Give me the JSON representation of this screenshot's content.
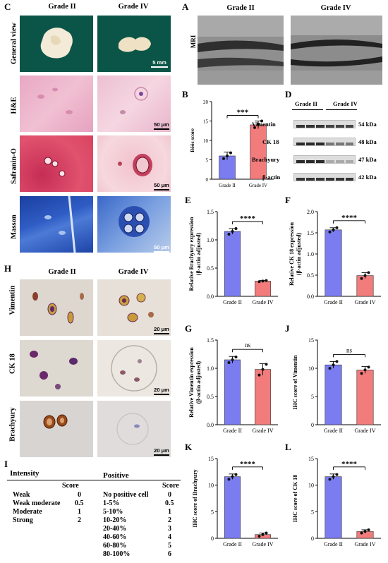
{
  "panel_C": {
    "label": "C",
    "columns": [
      "Grade II",
      "Grade IV"
    ],
    "rows": [
      "General view",
      "H&E",
      "Safranin-O",
      "Masson"
    ],
    "scalebars": [
      "5 mm",
      "50 μm",
      "50 μm",
      "50 μm"
    ]
  },
  "panel_A": {
    "label": "A",
    "columns": [
      "Grade II",
      "Grade IV"
    ],
    "row": "MRI"
  },
  "panel_D": {
    "label": "D",
    "columns": [
      "Grade II",
      "Grade IV"
    ],
    "proteins": [
      "Vimentin",
      "CK 18",
      "Brachyury",
      "β-actin"
    ],
    "sizes": [
      "54 kDa",
      "48 kDa",
      "47 kDa",
      "42 kDa"
    ]
  },
  "panel_H": {
    "label": "H",
    "columns": [
      "Grade II",
      "Grade IV"
    ],
    "rows": [
      "Vimentin",
      "CK 18",
      "Brachyury"
    ],
    "scalebars": [
      "20 μm",
      "20 μm",
      "20 μm"
    ]
  },
  "panel_I": {
    "label": "I",
    "intensity_header": "Intensity",
    "score_header": "Score",
    "positive_header": "Positive",
    "intensity_rows": [
      {
        "name": "Weak",
        "score": "0"
      },
      {
        "name": "Weak moderate",
        "score": "0.5"
      },
      {
        "name": "Moderate",
        "score": "1"
      },
      {
        "name": "Strong",
        "score": "2"
      }
    ],
    "positive_rows": [
      {
        "name": "No positive cell",
        "score": "0"
      },
      {
        "name": "1-5%",
        "score": "0.5"
      },
      {
        "name": "5-10%",
        "score": "1"
      },
      {
        "name": "10-20%",
        "score": "2"
      },
      {
        "name": "20-40%",
        "score": "3"
      },
      {
        "name": "40-60%",
        "score": "4"
      },
      {
        "name": "60-80%",
        "score": "5"
      },
      {
        "name": "80-100%",
        "score": "6"
      }
    ]
  },
  "colors": {
    "grade2": "#7b7cf0",
    "grade4": "#f27c7c",
    "dot": "#111111"
  },
  "chart_data": [
    {
      "panel": "B",
      "type": "bar",
      "categories": [
        "Grade II",
        "Grade IV"
      ],
      "values": [
        6,
        14
      ],
      "errors": [
        1.0,
        1.0
      ],
      "points": [
        [
          5.3,
          6.0,
          6.8
        ],
        [
          13.3,
          14.2,
          15.0
        ]
      ],
      "ylabel": "Bôös score",
      "ylim": [
        0,
        20
      ],
      "yticks": [
        0,
        5,
        10,
        15,
        20
      ],
      "sig": "***"
    },
    {
      "panel": "E",
      "type": "bar",
      "categories": [
        "Grade II",
        "Grade IV"
      ],
      "values": [
        1.15,
        0.27
      ],
      "errors": [
        0.05,
        0.01
      ],
      "points": [
        [
          1.1,
          1.15,
          1.2
        ],
        [
          0.26,
          0.27,
          0.28
        ]
      ],
      "ylabel": "Relative Brachyury expression (β-actin adjusted)",
      "ylim": [
        0,
        1.5
      ],
      "yticks": [
        0.0,
        0.5,
        1.0,
        1.5
      ],
      "sig": "****"
    },
    {
      "panel": "F",
      "type": "bar",
      "categories": [
        "Grade II",
        "Grade IV"
      ],
      "values": [
        1.57,
        0.49
      ],
      "errors": [
        0.05,
        0.07
      ],
      "points": [
        [
          1.52,
          1.57,
          1.62
        ],
        [
          0.42,
          0.49,
          0.56
        ]
      ],
      "ylabel": "Relative CK 18 expression (β-actin adjusted)",
      "ylim": [
        0,
        2.0
      ],
      "yticks": [
        0.0,
        0.5,
        1.0,
        1.5,
        2.0
      ],
      "sig": "****"
    },
    {
      "panel": "G",
      "type": "bar",
      "categories": [
        "Grade II",
        "Grade IV"
      ],
      "values": [
        1.15,
        0.98
      ],
      "errors": [
        0.06,
        0.1
      ],
      "points": [
        [
          1.1,
          1.15,
          1.2
        ],
        [
          0.88,
          0.98,
          1.07
        ]
      ],
      "ylabel": "Relative Vimentin expression (β-actin adjusted)",
      "ylim": [
        0,
        1.5
      ],
      "yticks": [
        0.0,
        0.5,
        1.0,
        1.5
      ],
      "sig": "ns"
    },
    {
      "panel": "J",
      "type": "bar",
      "categories": [
        "Grade II",
        "Grade IV"
      ],
      "values": [
        10.6,
        9.7
      ],
      "errors": [
        0.6,
        0.6
      ],
      "points": [
        [
          10.0,
          10.6,
          11.2
        ],
        [
          9.1,
          9.7,
          10.2
        ]
      ],
      "ylabel": "IHC score of Vimentin",
      "ylim": [
        0,
        15
      ],
      "yticks": [
        0,
        5,
        10,
        15
      ],
      "sig": "ns"
    },
    {
      "panel": "K",
      "type": "bar",
      "categories": [
        "Grade II",
        "Grade IV"
      ],
      "values": [
        11.6,
        0.7
      ],
      "errors": [
        0.5,
        0.3
      ],
      "points": [
        [
          11.1,
          11.6,
          12.0
        ],
        [
          0.4,
          0.7,
          1.0
        ]
      ],
      "ylabel": "IHC score of Brachyury",
      "ylim": [
        0,
        15
      ],
      "yticks": [
        0,
        5,
        10,
        15
      ],
      "sig": "****"
    },
    {
      "panel": "L",
      "type": "bar",
      "categories": [
        "Grade II",
        "Grade IV"
      ],
      "values": [
        11.6,
        1.3
      ],
      "errors": [
        0.5,
        0.3
      ],
      "points": [
        [
          11.1,
          11.6,
          12.0
        ],
        [
          1.0,
          1.3,
          1.6
        ]
      ],
      "ylabel": "IHC score of CK 18",
      "ylim": [
        0,
        15
      ],
      "yticks": [
        0,
        5,
        10,
        15
      ],
      "sig": "****"
    }
  ]
}
